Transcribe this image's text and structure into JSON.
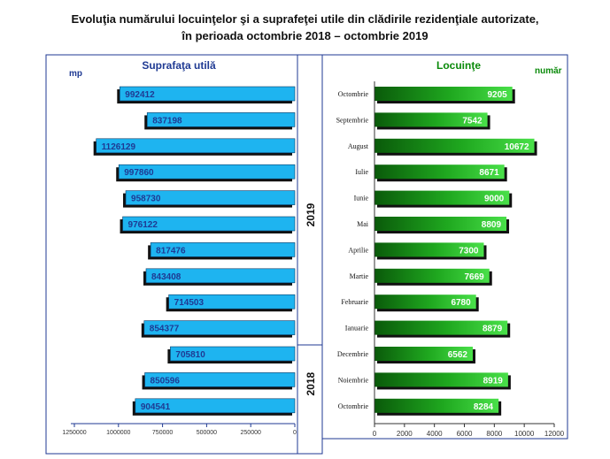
{
  "title_line1": "Evoluţia numărului locuinţelor şi a suprafeţei utile din clădirile rezidenţiale autorizate,",
  "title_line2": "în perioada octombrie 2018  – octombrie 2019",
  "colors": {
    "area_bar": "#1EB4F0",
    "area_label": "#1F3A93",
    "dwell_bar_light": "#3FD83F",
    "dwell_bar_dark": "#0A5A0A",
    "dwell_title": "#0A8A0A",
    "shadow": "#111111",
    "frame": "#1F3A93"
  },
  "chart_data": {
    "type": "bar",
    "categories": [
      "Octombrie",
      "Septembrie",
      "August",
      "Iulie",
      "Iunie",
      "Mai",
      "Aprilie",
      "Martie",
      "Februarie",
      "Ianuarie",
      "Decembrie",
      "Noiembrie",
      "Octombrie"
    ],
    "year_labels": [
      {
        "label": "2019",
        "months": 10
      },
      {
        "label": "2018",
        "months": 3
      }
    ],
    "left": {
      "title": "Suprafaţa utilă",
      "unit": "mp",
      "values": [
        992412,
        837198,
        1126129,
        997860,
        958730,
        976122,
        817476,
        843408,
        714503,
        854377,
        705810,
        850596,
        904541
      ],
      "xlim": [
        0,
        1250000
      ],
      "ticks": [
        1250000,
        1000000,
        750000,
        500000,
        250000,
        0
      ],
      "direction": "right-to-left"
    },
    "right": {
      "title": "Locuinţe",
      "unit": "număr",
      "values": [
        9205,
        7542,
        10672,
        8671,
        9000,
        8809,
        7300,
        7669,
        6780,
        8879,
        6562,
        8919,
        8284
      ],
      "xlim": [
        0,
        12000
      ],
      "ticks": [
        0,
        2000,
        4000,
        6000,
        8000,
        10000,
        12000
      ],
      "direction": "left-to-right"
    },
    "grid": false
  }
}
